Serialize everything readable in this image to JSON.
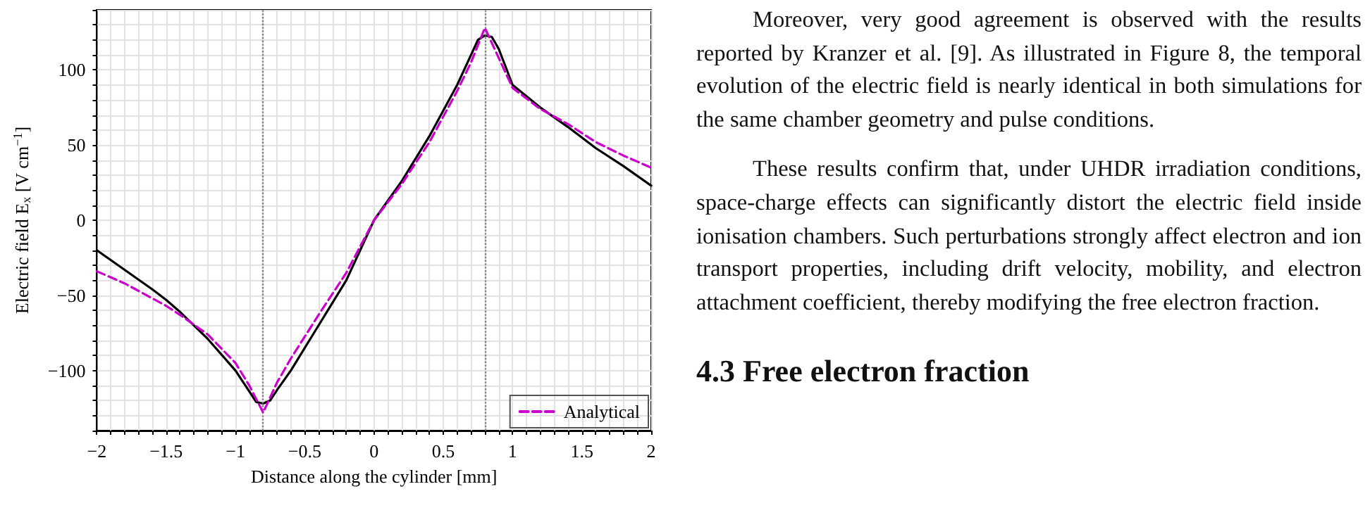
{
  "chart_data": {
    "type": "line",
    "xlabel": "Distance along the cylinder [mm]",
    "ylabel": "Electric field E$_{x}$ [V cm$^{−1}$]",
    "xlim": [
      -2,
      2
    ],
    "ylim": [
      -140,
      140
    ],
    "xticks": [
      {
        "value": -2,
        "label": "−2"
      },
      {
        "value": -1.5,
        "label": "−1.5"
      },
      {
        "value": -1,
        "label": "−1"
      },
      {
        "value": -0.5,
        "label": "−0.5"
      },
      0,
      0.5,
      1,
      1.5,
      2
    ],
    "yticks": [
      {
        "value": -100,
        "label": "−100"
      },
      {
        "value": -50,
        "label": "−50"
      },
      0,
      50,
      100
    ],
    "grid": true,
    "legend": "bottom right",
    "marker": "none",
    "series": [
      {
        "name": "Analytical",
        "color": "#cc00cc",
        "line_style": "dashed",
        "x": [
          -2,
          -1.8,
          -1.6,
          -1.5,
          -1.4,
          -1.2,
          -1,
          -0.9,
          -0.8,
          -0.7,
          -0.6,
          -0.4,
          -0.2,
          0,
          0.2,
          0.4,
          0.6,
          0.7,
          0.8,
          0.9,
          1,
          1.2,
          1.4,
          1.6,
          1.8,
          2
        ],
        "values": [
          -34,
          -42,
          -52,
          -57,
          -63,
          -76,
          -95,
          -110,
          -128,
          -108,
          -92,
          -63,
          -35,
          0,
          24,
          52,
          86,
          105,
          128,
          108,
          88,
          74,
          64,
          52,
          43,
          35
        ]
      },
      {
        "color": "#000000",
        "line_style": "solid",
        "x": [
          -2,
          -1.8,
          -1.6,
          -1.5,
          -1.4,
          -1.2,
          -1,
          -0.9,
          -0.85,
          -0.8,
          -0.75,
          -0.7,
          -0.6,
          -0.4,
          -0.2,
          0,
          0.2,
          0.4,
          0.6,
          0.7,
          0.75,
          0.8,
          0.85,
          0.9,
          1,
          1.2,
          1.4,
          1.6,
          1.8,
          2
        ],
        "values": [
          -20,
          -33,
          -46,
          -53,
          -61,
          -79,
          -100,
          -114,
          -121,
          -122,
          -120,
          -113,
          -100,
          -70,
          -40,
          0,
          26,
          56,
          90,
          110,
          120,
          123,
          122,
          114,
          90,
          75,
          62,
          48,
          36,
          23
        ]
      }
    ],
    "ref_lines": [
      {
        "axis": "x",
        "value": -0.8,
        "color": "#808080",
        "line_style": "dotted"
      },
      {
        "axis": "x",
        "value": 0.8,
        "color": "#808080",
        "line_style": "dotted"
      }
    ],
    "annotations": [
      "Moreover, very good agreement is observed with the results reported by Kranzer et al. [9]. As illustrated in Figure 8, the temporal evolution of the electric field is nearly identical in both simulations for the same chamber geometry and pulse conditions.",
      "These results confirm that, under UHDR irradiation conditions, space-charge effects can significantly distort the electric field inside ionisation chambers. Such perturbations strongly affect electron and ion transport properties, including drift velocity, mobility, and electron attachment coefficient, thereby modifying the free electron fraction.",
      "4.3 Free electron fraction"
    ]
  }
}
